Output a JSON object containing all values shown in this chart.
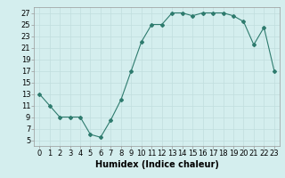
{
  "x": [
    0,
    1,
    2,
    3,
    4,
    5,
    6,
    7,
    8,
    9,
    10,
    11,
    12,
    13,
    14,
    15,
    16,
    17,
    18,
    19,
    20,
    21,
    22,
    23
  ],
  "y": [
    13,
    11,
    9,
    9,
    9,
    6,
    5.5,
    8.5,
    12,
    17,
    22,
    25,
    25,
    27,
    27,
    26.5,
    27,
    27,
    27,
    26.5,
    25.5,
    21.5,
    24.5,
    17
  ],
  "line_color": "#2e7b6e",
  "marker_color": "#2e7b6e",
  "bg_color": "#d4eeee",
  "grid_color": "#c0dede",
  "xlabel": "Humidex (Indice chaleur)",
  "ylim": [
    4,
    28
  ],
  "xlim": [
    -0.5,
    23.5
  ],
  "yticks": [
    5,
    7,
    9,
    11,
    13,
    15,
    17,
    19,
    21,
    23,
    25,
    27
  ],
  "xticks": [
    0,
    1,
    2,
    3,
    4,
    5,
    6,
    7,
    8,
    9,
    10,
    11,
    12,
    13,
    14,
    15,
    16,
    17,
    18,
    19,
    20,
    21,
    22,
    23
  ],
  "xtick_labels": [
    "0",
    "1",
    "2",
    "3",
    "4",
    "5",
    "6",
    "7",
    "8",
    "9",
    "10",
    "11",
    "12",
    "13",
    "14",
    "15",
    "16",
    "17",
    "18",
    "19",
    "20",
    "21",
    "22",
    "23"
  ],
  "font_size": 6,
  "xlabel_fontsize": 7
}
